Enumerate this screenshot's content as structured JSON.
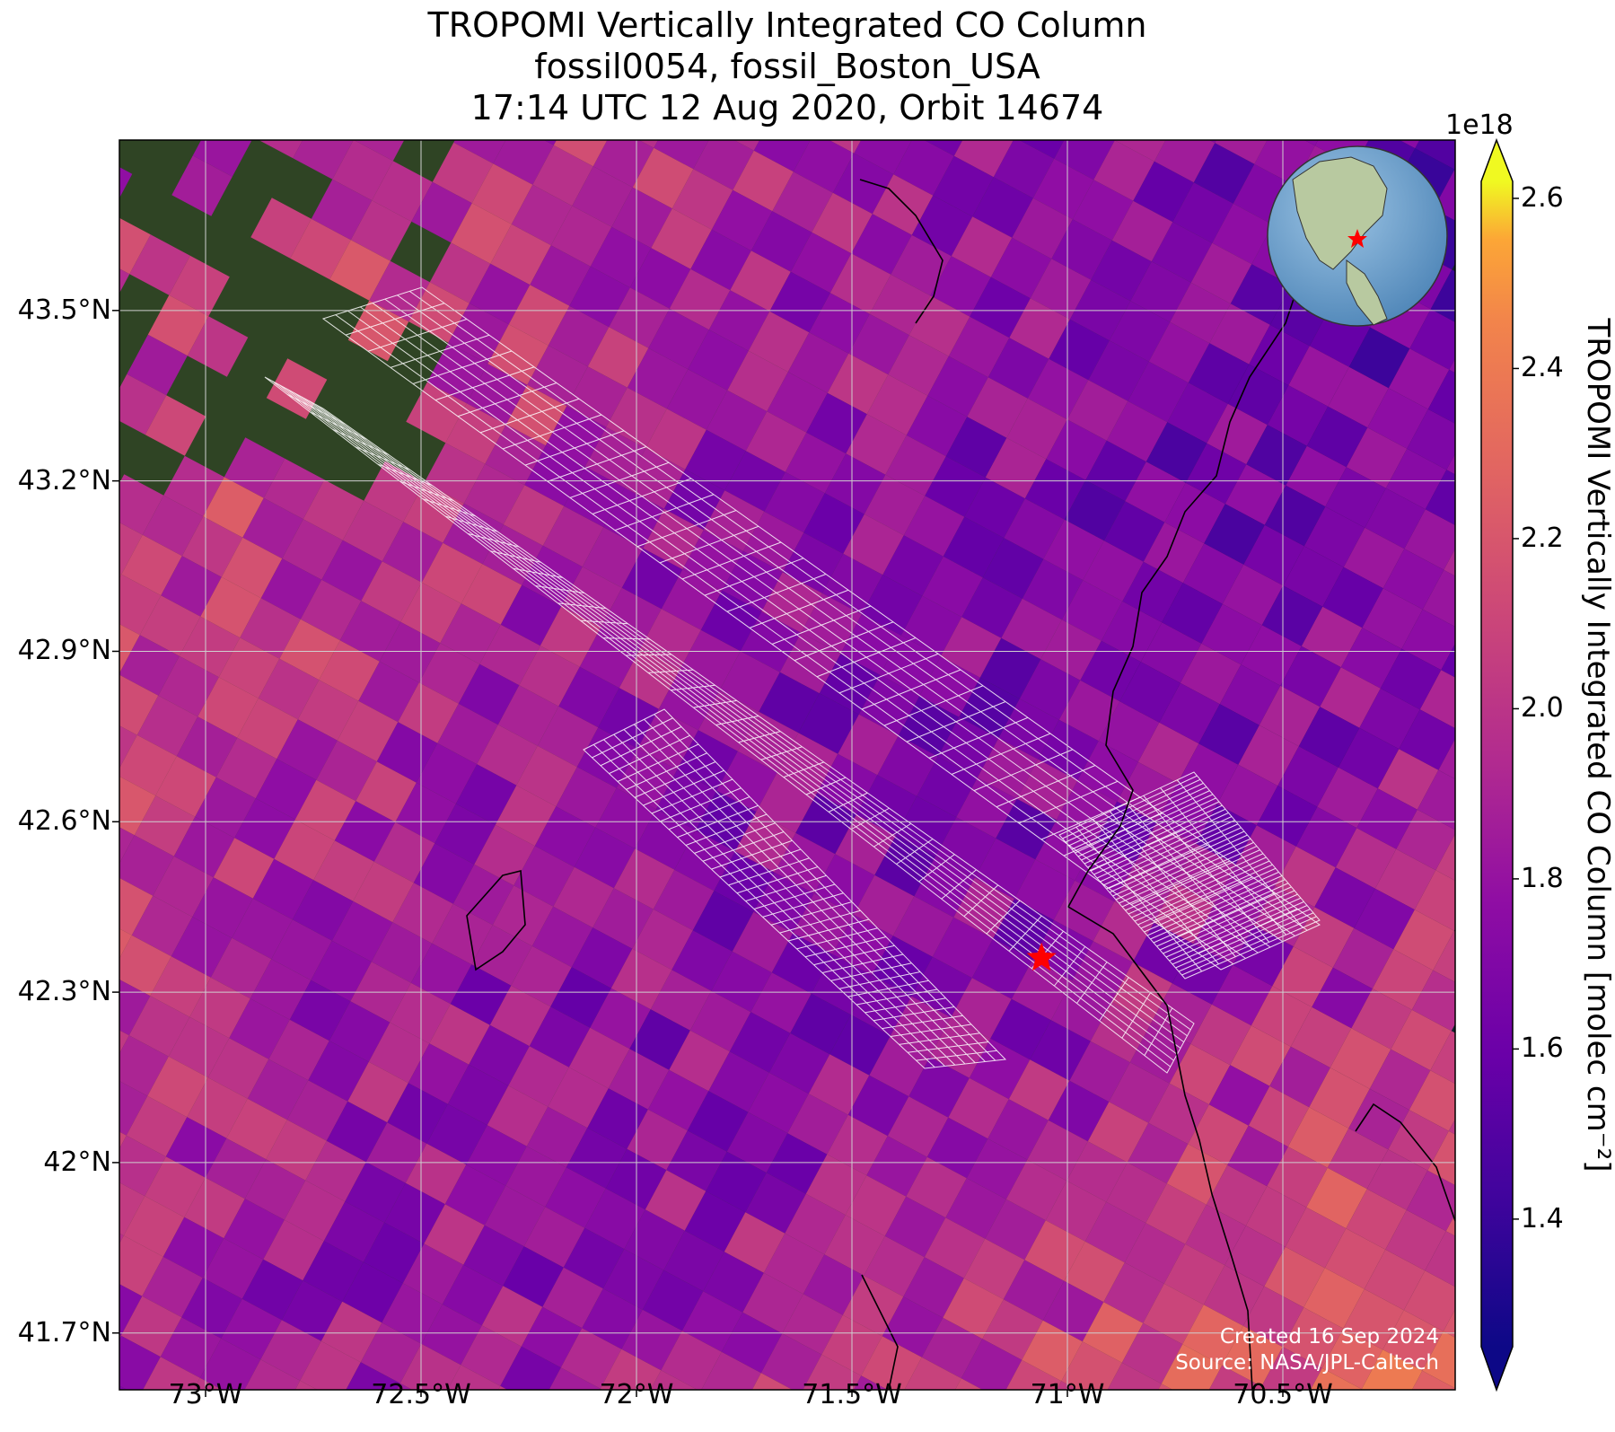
{
  "title": {
    "line1": "TROPOMI Vertically Integrated CO Column",
    "line2": "fossil0054, fossil_Boston_USA",
    "line3": "17:14 UTC 12 Aug 2020, Orbit 14674"
  },
  "map": {
    "lon_range": [
      -73.2,
      -70.1
    ],
    "lat_range": [
      41.6,
      43.8
    ],
    "lat_ticks": [
      {
        "value": 43.5,
        "label": "43.5°N"
      },
      {
        "value": 43.2,
        "label": "43.2°N"
      },
      {
        "value": 42.9,
        "label": "42.9°N"
      },
      {
        "value": 42.6,
        "label": "42.6°N"
      },
      {
        "value": 42.3,
        "label": "42.3°N"
      },
      {
        "value": 42.0,
        "label": "42°N"
      },
      {
        "value": 41.7,
        "label": "41.7°N"
      }
    ],
    "lon_ticks": [
      {
        "value": -73.0,
        "label": "73°W"
      },
      {
        "value": -72.5,
        "label": "72.5°W"
      },
      {
        "value": -72.0,
        "label": "72°W"
      },
      {
        "value": -71.5,
        "label": "71.5°W"
      },
      {
        "value": -71.0,
        "label": "71°W"
      },
      {
        "value": -70.5,
        "label": "70.5°W"
      }
    ],
    "site_marker": {
      "name": "fossil_Boston_USA",
      "lon": -71.06,
      "lat": 42.36,
      "color": "#ff0000"
    },
    "land_color": "#2f4424",
    "ocean_color": "#13232e",
    "grid_color": "#cfcfcf"
  },
  "colorbar": {
    "exponent_label": "1e18",
    "label": "TROPOMI Vertically Integrated CO Column [molec cm⁻²]",
    "min": 1.25,
    "max": 2.62,
    "colormap": "plasma",
    "ticks": [
      {
        "value": 1.4,
        "label": "1.4"
      },
      {
        "value": 1.6,
        "label": "1.6"
      },
      {
        "value": 1.8,
        "label": "1.8"
      },
      {
        "value": 2.0,
        "label": "2.0"
      },
      {
        "value": 2.2,
        "label": "2.2"
      },
      {
        "value": 2.4,
        "label": "2.4"
      },
      {
        "value": 2.6,
        "label": "2.6"
      }
    ]
  },
  "credits": {
    "created": "Created 16 Sep 2024",
    "source": "Source: NASA/JPL-Caltech"
  }
}
